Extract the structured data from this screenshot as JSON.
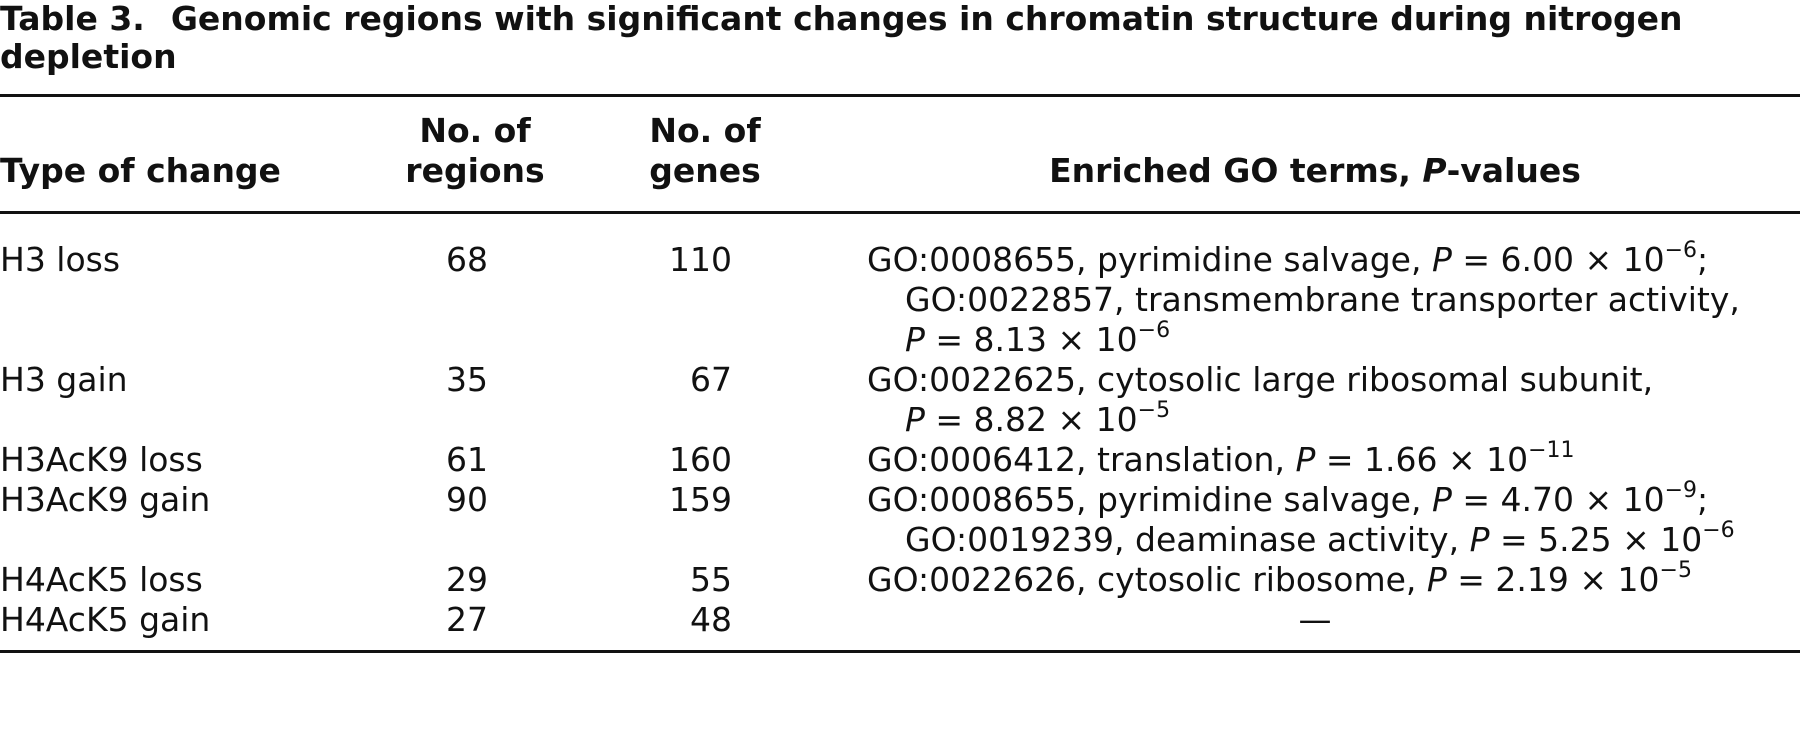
{
  "title": {
    "label": "Table 3.",
    "text": "Genomic regions with significant changes in chromatin structure during nitrogen depletion"
  },
  "table": {
    "columns": [
      [
        [
          {
            "text": "Type of change"
          }
        ]
      ],
      [
        [
          {
            "text": "No. of"
          }
        ],
        [
          {
            "text": "regions"
          }
        ]
      ],
      [
        [
          {
            "text": "No. of"
          }
        ],
        [
          {
            "text": "genes"
          }
        ]
      ],
      [
        [
          {
            "text": "Enriched GO terms, "
          },
          {
            "text": "P",
            "style": "italic"
          },
          {
            "text": "-values"
          }
        ]
      ]
    ],
    "rows": [
      {
        "type": "H3 loss",
        "regions": 68,
        "genes": 110,
        "go": [
          [
            {
              "text": "GO:0008655, pyrimidine salvage, "
            },
            {
              "text": "P",
              "style": "italic"
            },
            {
              "text": " = 6.00 × 10"
            },
            {
              "text": "−6",
              "style": "sup"
            },
            {
              "text": ";"
            }
          ],
          [
            {
              "text": "GO:0022857, transmembrane transporter activity,"
            }
          ],
          [
            {
              "text": "P",
              "style": "italic"
            },
            {
              "text": " = 8.13 × 10"
            },
            {
              "text": "−6",
              "style": "sup"
            }
          ]
        ]
      },
      {
        "type": "H3 gain",
        "regions": 35,
        "genes": 67,
        "go": [
          [
            {
              "text": "GO:0022625, cytosolic large ribosomal subunit,"
            }
          ],
          [
            {
              "text": "P",
              "style": "italic"
            },
            {
              "text": " = 8.82 × 10"
            },
            {
              "text": "−5",
              "style": "sup"
            }
          ]
        ]
      },
      {
        "type": "H3AcK9 loss",
        "regions": 61,
        "genes": 160,
        "go": [
          [
            {
              "text": "GO:0006412, translation, "
            },
            {
              "text": "P",
              "style": "italic"
            },
            {
              "text": " = 1.66 × 10"
            },
            {
              "text": "−11",
              "style": "sup"
            }
          ]
        ]
      },
      {
        "type": "H3AcK9 gain",
        "regions": 90,
        "genes": 159,
        "go": [
          [
            {
              "text": "GO:0008655, pyrimidine salvage, "
            },
            {
              "text": "P",
              "style": "italic"
            },
            {
              "text": " = 4.70 × 10"
            },
            {
              "text": "−9",
              "style": "sup"
            },
            {
              "text": ";"
            }
          ],
          [
            {
              "text": "GO:0019239, deaminase activity, "
            },
            {
              "text": "P",
              "style": "italic"
            },
            {
              "text": " = 5.25 × 10"
            },
            {
              "text": "−6",
              "style": "sup"
            }
          ]
        ]
      },
      {
        "type": "H4AcK5 loss",
        "regions": 29,
        "genes": 55,
        "go": [
          [
            {
              "text": "GO:0022626, cytosolic ribosome, "
            },
            {
              "text": "P",
              "style": "italic"
            },
            {
              "text": " = 2.19 × 10"
            },
            {
              "text": "−5",
              "style": "sup"
            }
          ]
        ]
      },
      {
        "type": "H4AcK5 gain",
        "regions": 27,
        "genes": 48,
        "go": [
          [
            {
              "text": "—",
              "style": "center"
            }
          ]
        ]
      }
    ]
  }
}
